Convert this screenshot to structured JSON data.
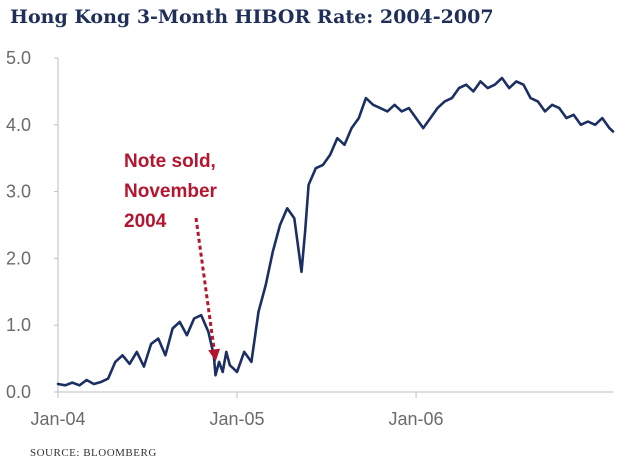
{
  "title": "Hong Kong 3-Month HIBOR Rate: 2004-2007",
  "source": "SOURCE:  BLOOMBERG",
  "colors": {
    "line": "#1b2f63",
    "annotation": "#b3162e",
    "axis": "#bfbfbf",
    "title": "#1f2f5a"
  },
  "chart_data": {
    "type": "line",
    "title": "Hong Kong 3-Month HIBOR Rate: 2004-2007",
    "xlabel": "",
    "ylabel": "",
    "xlim": [
      2004.0,
      2007.1
    ],
    "ylim": [
      0,
      5
    ],
    "yticks": [
      0,
      1,
      2,
      3,
      4,
      5
    ],
    "ytick_labels": [
      "0.0",
      "1.0",
      "2.0",
      "3.0",
      "4.0",
      "5.0"
    ],
    "xticks": [
      2004.0,
      2005.0,
      2006.0
    ],
    "xtick_labels": [
      "Jan-04",
      "Jan-05",
      "Jan-06"
    ],
    "grid": false,
    "series": [
      {
        "x": [
          2004.0,
          2004.04,
          2004.08,
          2004.12,
          2004.16,
          2004.2,
          2004.24,
          2004.28,
          2004.32,
          2004.36,
          2004.4,
          2004.44,
          2004.48,
          2004.52,
          2004.56,
          2004.6,
          2004.64,
          2004.68,
          2004.72,
          2004.76,
          2004.8,
          2004.84,
          2004.87,
          2004.88,
          2004.9,
          2004.92,
          2004.94,
          2004.96,
          2004.98,
          2005.0,
          2005.04,
          2005.08,
          2005.12,
          2005.16,
          2005.2,
          2005.24,
          2005.28,
          2005.32,
          2005.34,
          2005.36,
          2005.38,
          2005.4,
          2005.44,
          2005.48,
          2005.52,
          2005.56,
          2005.6,
          2005.64,
          2005.68,
          2005.72,
          2005.76,
          2005.8,
          2005.84,
          2005.88,
          2005.92,
          2005.96,
          2006.0,
          2006.04,
          2006.08,
          2006.12,
          2006.16,
          2006.2,
          2006.24,
          2006.28,
          2006.32,
          2006.36,
          2006.4,
          2006.44,
          2006.48,
          2006.52,
          2006.56,
          2006.6,
          2006.64,
          2006.68,
          2006.72,
          2006.76,
          2006.8,
          2006.84,
          2006.88,
          2006.92,
          2006.96,
          2007.0,
          2007.04,
          2007.08,
          2007.1
        ],
        "values": [
          0.12,
          0.1,
          0.14,
          0.1,
          0.18,
          0.12,
          0.15,
          0.2,
          0.45,
          0.55,
          0.42,
          0.6,
          0.38,
          0.72,
          0.8,
          0.55,
          0.95,
          1.05,
          0.85,
          1.1,
          1.15,
          0.9,
          0.55,
          0.25,
          0.45,
          0.3,
          0.6,
          0.4,
          0.35,
          0.3,
          0.6,
          0.45,
          1.2,
          1.6,
          2.1,
          2.5,
          2.75,
          2.6,
          2.2,
          1.8,
          2.4,
          3.1,
          3.35,
          3.4,
          3.55,
          3.8,
          3.7,
          3.95,
          4.1,
          4.4,
          4.3,
          4.25,
          4.2,
          4.3,
          4.2,
          4.25,
          4.1,
          3.95,
          4.1,
          4.25,
          4.35,
          4.4,
          4.55,
          4.6,
          4.5,
          4.65,
          4.55,
          4.6,
          4.7,
          4.55,
          4.65,
          4.6,
          4.4,
          4.35,
          4.2,
          4.3,
          4.25,
          4.1,
          4.15,
          4.0,
          4.05,
          4.0,
          4.1,
          3.95,
          3.9
        ]
      }
    ],
    "annotations": [
      {
        "lines": [
          "Note sold,",
          "November",
          "2004"
        ],
        "points_to": {
          "x": 2004.87,
          "y": 0.25
        }
      }
    ]
  }
}
